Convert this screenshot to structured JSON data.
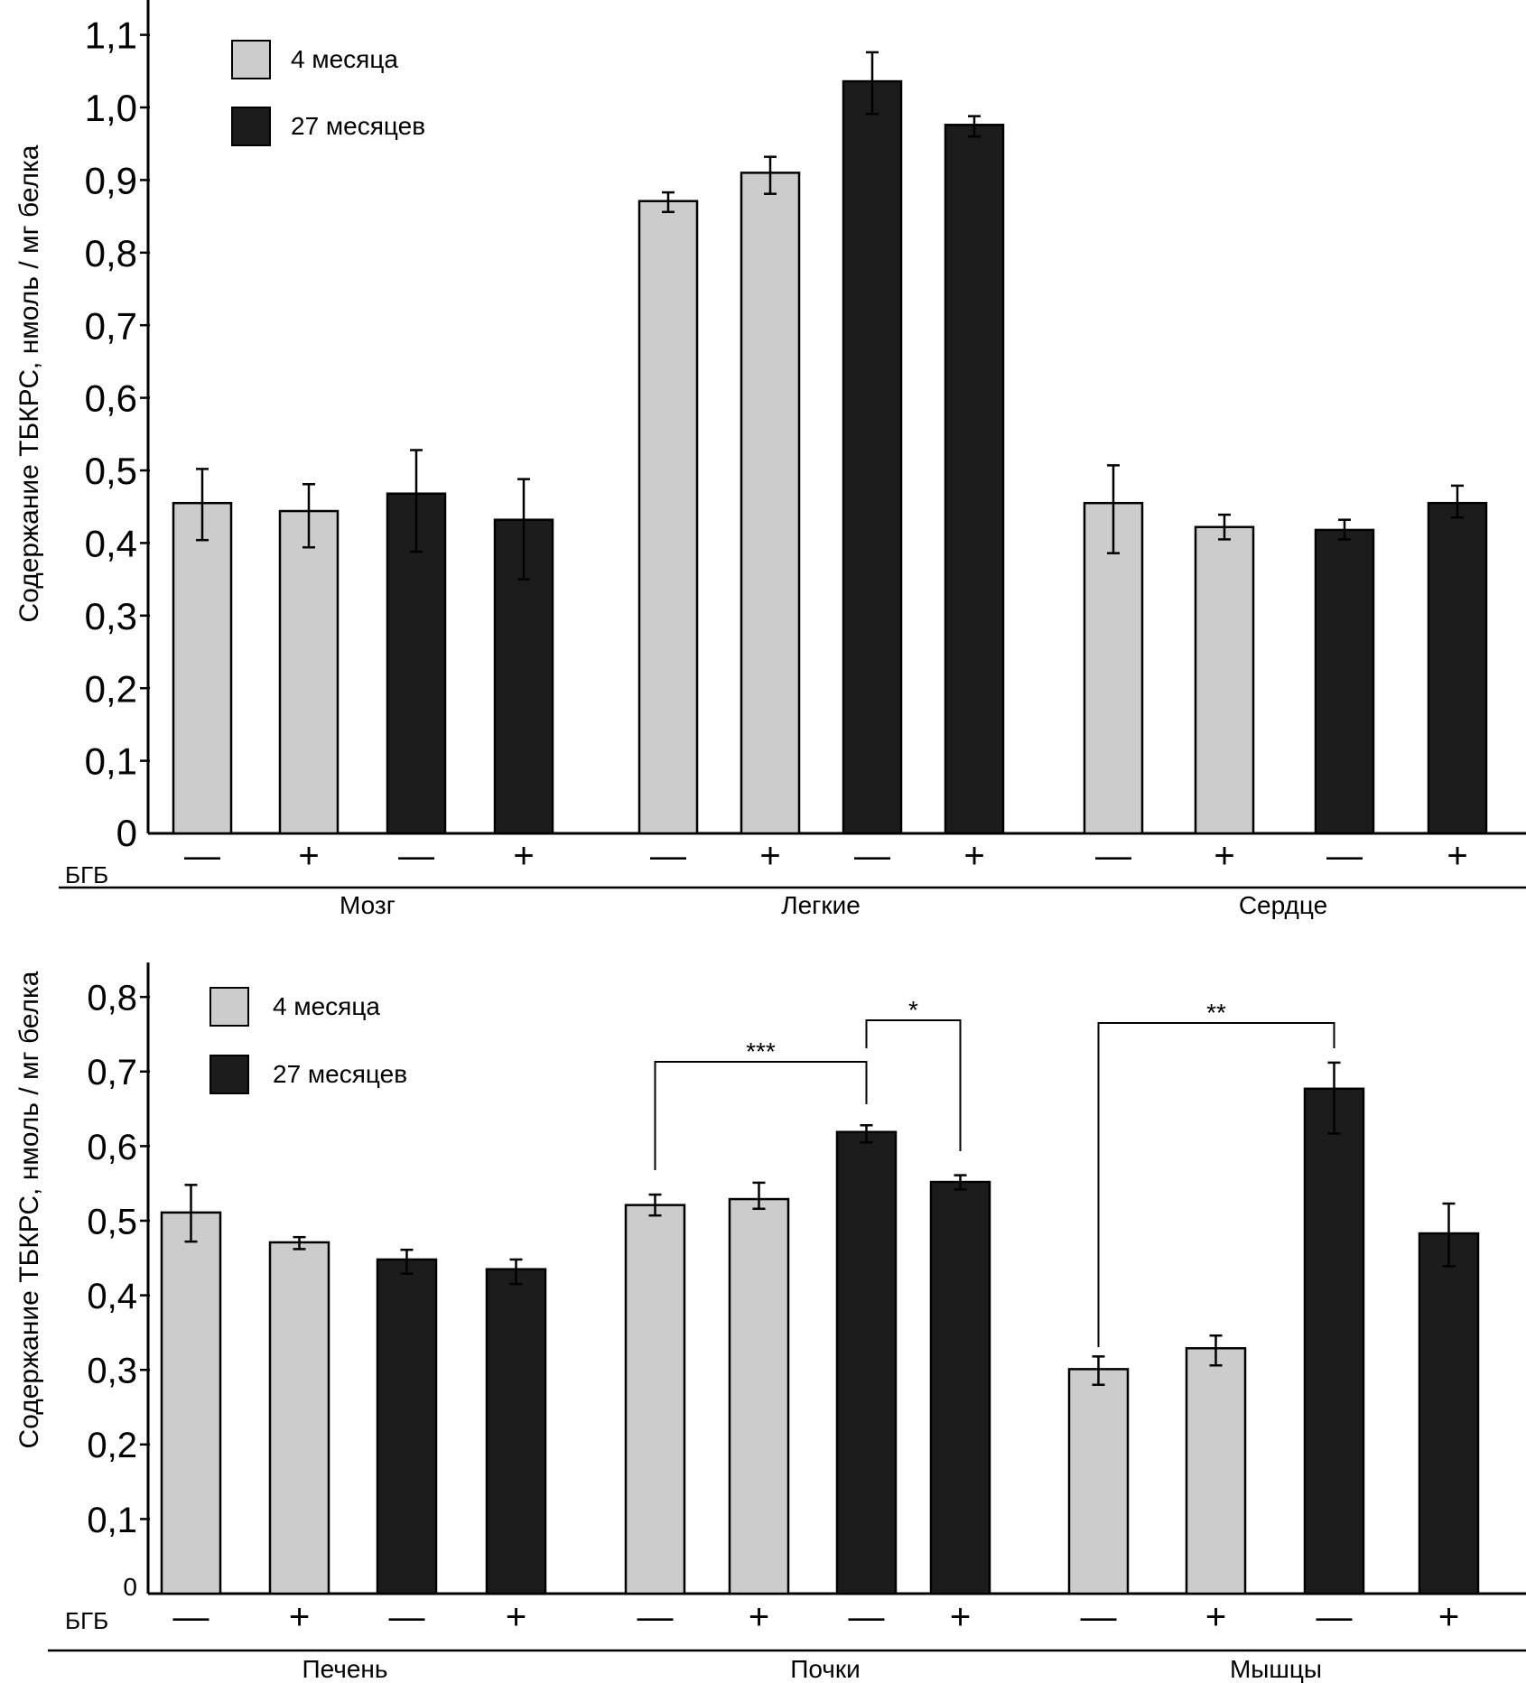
{
  "chart_data": [
    {
      "type": "bar",
      "ylabel": "Содержание ТБКРС, нмоль / мг белка",
      "ylim": [
        0,
        1.15
      ],
      "yticks": [
        0,
        0.1,
        0.2,
        0.3,
        0.4,
        0.5,
        0.6,
        0.7,
        0.8,
        0.9,
        1.0,
        1.1
      ],
      "ytick_labels": [
        "0",
        "0,1",
        "0,2",
        "0,3",
        "0,4",
        "0,5",
        "0,6",
        "0,7",
        "0,8",
        "0,9",
        "1,0",
        "1,1"
      ],
      "treatment_label": "БГБ",
      "legend": {
        "placement": "top-left",
        "entries": [
          {
            "name": "4 месяца",
            "color": "#cccccc"
          },
          {
            "name": "27 месяцев",
            "color": "#1c1c1c"
          }
        ]
      },
      "groups": [
        {
          "name": "Мозг",
          "bars": [
            {
              "series": "4 месяца",
              "bgb": "—",
              "value": 0.455,
              "err_low": 0.404,
              "err_high": 0.502
            },
            {
              "series": "4 месяца",
              "bgb": "+",
              "value": 0.444,
              "err_low": 0.394,
              "err_high": 0.481
            },
            {
              "series": "27 месяцев",
              "bgb": "—",
              "value": 0.468,
              "err_low": 0.388,
              "err_high": 0.528
            },
            {
              "series": "27 месяцев",
              "bgb": "+",
              "value": 0.432,
              "err_low": 0.35,
              "err_high": 0.488
            }
          ]
        },
        {
          "name": "Легкие",
          "bars": [
            {
              "series": "4 месяца",
              "bgb": "—",
              "value": 0.871,
              "err_low": 0.856,
              "err_high": 0.883
            },
            {
              "series": "4 месяца",
              "bgb": "+",
              "value": 0.91,
              "err_low": 0.881,
              "err_high": 0.932
            },
            {
              "series": "27 месяцев",
              "bgb": "—",
              "value": 1.036,
              "err_low": 0.991,
              "err_high": 1.076
            },
            {
              "series": "27 месяцев",
              "bgb": "+",
              "value": 0.976,
              "err_low": 0.96,
              "err_high": 0.988
            }
          ]
        },
        {
          "name": "Сердце",
          "bars": [
            {
              "series": "4 месяца",
              "bgb": "—",
              "value": 0.455,
              "err_low": 0.386,
              "err_high": 0.507
            },
            {
              "series": "4 месяца",
              "bgb": "+",
              "value": 0.422,
              "err_low": 0.405,
              "err_high": 0.439
            },
            {
              "series": "27 месяцев",
              "bgb": "—",
              "value": 0.418,
              "err_low": 0.405,
              "err_high": 0.432
            },
            {
              "series": "27 месяцев",
              "bgb": "+",
              "value": 0.455,
              "err_low": 0.435,
              "err_high": 0.479
            }
          ]
        }
      ],
      "significance": []
    },
    {
      "type": "bar",
      "ylabel": "Содержание ТБКРС, нмоль / мг белка",
      "ylim": [
        0,
        0.85
      ],
      "yticks": [
        0,
        0.1,
        0.2,
        0.3,
        0.4,
        0.5,
        0.6,
        0.7,
        0.8
      ],
      "ytick_labels": [
        "0",
        "0,1",
        "0,2",
        "0,3",
        "0,4",
        "0,5",
        "0,6",
        "0,7",
        "0,8"
      ],
      "treatment_label": "БГБ",
      "legend": {
        "placement": "top-left",
        "entries": [
          {
            "name": "4 месяца",
            "color": "#cccccc"
          },
          {
            "name": "27 месяцев",
            "color": "#1c1c1c"
          }
        ]
      },
      "groups": [
        {
          "name": "Печень",
          "bars": [
            {
              "series": "4 месяца",
              "bgb": "—",
              "value": 0.511,
              "err_low": 0.472,
              "err_high": 0.548
            },
            {
              "series": "4 месяца",
              "bgb": "+",
              "value": 0.471,
              "err_low": 0.462,
              "err_high": 0.478
            },
            {
              "series": "27 месяцев",
              "bgb": "—",
              "value": 0.448,
              "err_low": 0.429,
              "err_high": 0.461
            },
            {
              "series": "27 месяцев",
              "bgb": "+",
              "value": 0.435,
              "err_low": 0.415,
              "err_high": 0.448
            }
          ]
        },
        {
          "name": "Почки",
          "bars": [
            {
              "series": "4 месяца",
              "bgb": "—",
              "value": 0.521,
              "err_low": 0.507,
              "err_high": 0.535
            },
            {
              "series": "4 месяца",
              "bgb": "+",
              "value": 0.529,
              "err_low": 0.516,
              "err_high": 0.551
            },
            {
              "series": "27 месяцев",
              "bgb": "—",
              "value": 0.619,
              "err_low": 0.605,
              "err_high": 0.628
            },
            {
              "series": "27 месяцев",
              "bgb": "+",
              "value": 0.552,
              "err_low": 0.542,
              "err_high": 0.561
            }
          ]
        },
        {
          "name": "Мышцы",
          "bars": [
            {
              "series": "4 месяца",
              "bgb": "—",
              "value": 0.301,
              "err_low": 0.28,
              "err_high": 0.318
            },
            {
              "series": "4 месяца",
              "bgb": "+",
              "value": 0.329,
              "err_low": 0.306,
              "err_high": 0.346
            },
            {
              "series": "27 месяцев",
              "bgb": "—",
              "value": 0.677,
              "err_low": 0.617,
              "err_high": 0.712
            },
            {
              "series": "27 месяцев",
              "bgb": "+",
              "value": 0.483,
              "err_low": 0.439,
              "err_high": 0.523
            }
          ]
        }
      ],
      "significance": [
        {
          "label": "***",
          "group": 1,
          "from_bar": 0,
          "to_bar": 2
        },
        {
          "label": "*",
          "group": 1,
          "from_bar": 2,
          "to_bar": 3
        },
        {
          "label": "**",
          "group": 2,
          "from_bar": 0,
          "to_bar": 2
        }
      ]
    }
  ]
}
